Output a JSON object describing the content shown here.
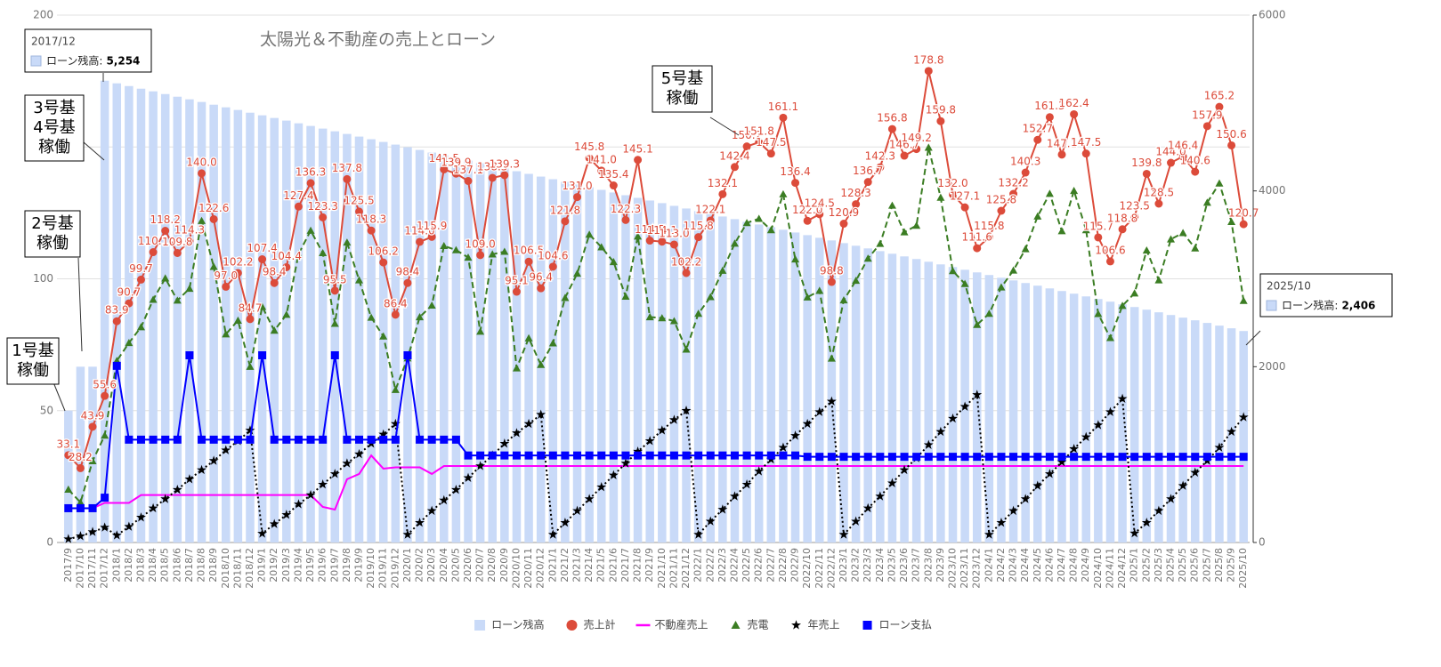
{
  "chart_data": {
    "type": "combo",
    "title": "太陽光＆不動産の売上とローン",
    "categories": [
      "2017/9",
      "2017/10",
      "2017/11",
      "2017/12",
      "2018/1",
      "2018/2",
      "2018/3",
      "2018/4",
      "2018/5",
      "2018/6",
      "2018/7",
      "2018/8",
      "2018/9",
      "2018/10",
      "2018/11",
      "2018/12",
      "2019/1",
      "2019/2",
      "2019/3",
      "2019/4",
      "2019/5",
      "2019/6",
      "2019/7",
      "2019/8",
      "2019/9",
      "2019/10",
      "2019/11",
      "2019/12",
      "2020/1",
      "2020/2",
      "2020/3",
      "2020/4",
      "2020/5",
      "2020/6",
      "2020/7",
      "2020/8",
      "2020/9",
      "2020/10",
      "2020/11",
      "2020/12",
      "2021/1",
      "2021/2",
      "2021/3",
      "2021/4",
      "2021/5",
      "2021/6",
      "2021/7",
      "2021/8",
      "2021/9",
      "2021/10",
      "2021/11",
      "2021/12",
      "2022/1",
      "2022/2",
      "2022/3",
      "2022/4",
      "2022/5",
      "2022/6",
      "2022/7",
      "2022/8",
      "2022/9",
      "2022/10",
      "2022/11",
      "2022/12",
      "2023/1",
      "2023/2",
      "2023/3",
      "2023/4",
      "2023/5",
      "2023/6",
      "2023/7",
      "2023/8",
      "2023/9",
      "2023/10",
      "2023/11",
      "2023/12",
      "2024/1",
      "2024/2",
      "2024/3",
      "2024/4",
      "2024/5",
      "2024/6",
      "2024/7",
      "2024/8",
      "2024/9",
      "2024/10",
      "2024/11",
      "2024/12",
      "2025/1",
      "2025/2",
      "2025/3",
      "2025/4",
      "2025/5",
      "2025/6",
      "2025/7",
      "2025/8",
      "2025/9",
      "2025/10"
    ],
    "ylim": [
      0,
      200
    ],
    "yticks": [
      0,
      50,
      100,
      150,
      200
    ],
    "y2lim": [
      0,
      6000
    ],
    "y2ticks": [
      0,
      2000,
      4000,
      6000
    ],
    "grid": true,
    "legend": "bottom",
    "series": [
      {
        "name": "ローン残高",
        "type": "bar",
        "axis": "y2",
        "color": "#c9daf8",
        "values": [
          1500,
          2000,
          2000,
          5254,
          5224,
          5193,
          5163,
          5133,
          5102,
          5072,
          5042,
          5012,
          4981,
          4951,
          4921,
          4890,
          4860,
          4830,
          4800,
          4769,
          4739,
          4709,
          4678,
          4648,
          4618,
          4588,
          4557,
          4527,
          4497,
          4466,
          4436,
          4406,
          4376,
          4345,
          4315,
          4285,
          4254,
          4224,
          4194,
          4163,
          4133,
          4103,
          4073,
          4042,
          4012,
          3982,
          3951,
          3921,
          3891,
          3861,
          3830,
          3800,
          3770,
          3739,
          3709,
          3679,
          3649,
          3618,
          3588,
          3558,
          3527,
          3497,
          3467,
          3437,
          3406,
          3376,
          3346,
          3315,
          3285,
          3255,
          3225,
          3194,
          3164,
          3134,
          3103,
          3073,
          3043,
          3012,
          2982,
          2952,
          2922,
          2891,
          2861,
          2831,
          2800,
          2770,
          2740,
          2710,
          2679,
          2649,
          2619,
          2588,
          2558,
          2528,
          2498,
          2467,
          2437,
          2406
        ]
      },
      {
        "name": "売上計",
        "type": "line",
        "axis": "y",
        "color": "#dc4b3a",
        "marker": "circle",
        "dash": "solid",
        "values": [
          33.1,
          28.2,
          43.9,
          55.6,
          83.9,
          90.7,
          99.7,
          110.1,
          118.2,
          109.8,
          114.3,
          140.0,
          122.6,
          97.0,
          102.2,
          84.7,
          107.4,
          98.4,
          104.4,
          127.4,
          136.3,
          123.3,
          95.5,
          137.8,
          125.5,
          118.3,
          106.2,
          86.4,
          98.4,
          114.0,
          115.9,
          141.5,
          139.9,
          137.1,
          109.0,
          138.3,
          139.3,
          95.1,
          106.5,
          96.4,
          104.6,
          121.8,
          131.0,
          145.8,
          141.0,
          135.4,
          122.3,
          145.1,
          114.5,
          114.1,
          113.0,
          102.2,
          115.8,
          122.1,
          132.1,
          142.4,
          150.2,
          151.8,
          147.5,
          161.1,
          136.4,
          122.0,
          124.5,
          98.8,
          120.9,
          128.3,
          136.7,
          142.3,
          156.8,
          146.7,
          149.2,
          178.8,
          159.8,
          132.0,
          127.1,
          111.6,
          115.8,
          125.8,
          132.2,
          140.3,
          152.7,
          161.3,
          147.1,
          162.4,
          147.5,
          115.7,
          106.6,
          118.8,
          123.5,
          139.8,
          128.5,
          144.0,
          146.4,
          140.6,
          157.9,
          165.2,
          150.6,
          120.7
        ],
        "value_labels": [
          "33.1",
          "28.2",
          "43.9",
          "55.6",
          "83.9",
          "90.7",
          "99.7",
          "110.1",
          "118.2",
          "109.8",
          "114.3",
          "140.0",
          "122.6",
          "97.0",
          "102.2",
          "84.7",
          "107.4",
          "98.4",
          "104.4",
          "127.4",
          "136.3",
          "123.3",
          "95.5",
          "137.8",
          "125.5",
          "118.3",
          "106.2",
          "86.4",
          "98.4",
          "114.0",
          "115.9",
          "141.5",
          "139.9",
          "137.1",
          "109.0",
          "138.3",
          "139.3",
          "95.1",
          "106.5",
          "96.4",
          "104.6",
          "121.8",
          "131.0",
          "145.8",
          "141.0",
          "135.4",
          "122.3",
          "145.1",
          "114.5",
          "114.1",
          "113.0",
          "102.2",
          "115.8",
          "122.1",
          "132.1",
          "142.4",
          "150.2",
          "151.8",
          "147.5",
          "161.1",
          "136.4",
          "122.0",
          "124.5",
          "98.8",
          "120.9",
          "128.3",
          "136.7",
          "142.3",
          "156.8",
          "146.7",
          "149.2",
          "178.8",
          "159.8",
          "132.0",
          "127.1",
          "111.6",
          "115.8",
          "125.8",
          "132.2",
          "140.3",
          "152.7",
          "161.3",
          "147.1",
          "162.4",
          "147.5",
          "115.7",
          "106.6",
          "118.8",
          "123.5",
          "139.8",
          "128.5",
          "144.0",
          "146.4",
          "140.6",
          "157.9",
          "165.2",
          "150.6",
          "120.7"
        ]
      },
      {
        "name": "不動産売上",
        "type": "line",
        "axis": "y",
        "color": "#ff00ff",
        "marker": "none",
        "dash": "solid",
        "values": [
          13,
          13,
          13,
          15,
          15,
          15,
          18,
          18,
          18,
          18,
          18,
          18,
          18,
          18,
          18,
          18,
          18,
          18,
          18,
          18,
          18,
          13.5,
          12.5,
          24,
          26,
          33,
          28,
          28.5,
          28.5,
          28.5,
          26,
          29,
          29,
          29,
          29,
          29,
          29,
          29,
          29,
          29,
          29,
          29,
          29,
          29,
          29,
          29,
          29,
          29,
          29,
          29,
          29,
          29,
          29,
          29,
          29,
          29,
          29,
          29,
          29,
          29,
          29,
          29,
          29,
          29,
          29,
          29,
          29,
          29,
          29,
          29,
          29,
          29,
          29,
          29,
          29,
          29,
          29,
          29,
          29,
          29,
          29,
          29,
          29,
          29,
          29,
          29,
          29,
          29,
          29,
          29,
          29,
          29,
          29,
          29,
          29,
          29,
          29,
          29
        ]
      },
      {
        "name": "売電",
        "type": "line",
        "axis": "y",
        "color": "#3b7d23",
        "marker": "triangle",
        "dash": "dashed",
        "values": [
          20.1,
          15.2,
          30.9,
          40.6,
          68.9,
          75.7,
          81.7,
          92.1,
          100.2,
          91.8,
          96.3,
          122,
          104.6,
          79,
          84.2,
          66.7,
          89.4,
          80.4,
          86.4,
          109.4,
          118.3,
          109.8,
          83,
          113.8,
          99.5,
          85.3,
          78.2,
          57.9,
          69.9,
          85.5,
          89.9,
          112.5,
          110.9,
          108.1,
          80,
          109.3,
          110.3,
          66.1,
          77.5,
          67.4,
          75.6,
          92.8,
          102,
          116.8,
          112,
          106.4,
          93.3,
          116.1,
          85.5,
          85.1,
          84,
          73.2,
          86.8,
          93.1,
          103.1,
          113.4,
          121.2,
          122.8,
          118.5,
          132.1,
          107.4,
          93,
          95.5,
          69.8,
          91.9,
          99.3,
          107.7,
          113.3,
          127.8,
          117.7,
          120.2,
          149.8,
          130.8,
          103,
          98.1,
          82.6,
          86.8,
          96.8,
          103.2,
          111.3,
          123.7,
          132.3,
          118.1,
          133.4,
          118.5,
          86.7,
          77.6,
          89.8,
          94.5,
          110.8,
          99.5,
          115,
          117.4,
          111.6,
          128.9,
          136.2,
          121.6,
          91.7
        ]
      },
      {
        "name": "年売上",
        "type": "line",
        "axis": "y",
        "color": "#000000",
        "marker": "star",
        "dash": "dotted",
        "values": [
          1.3,
          2.4,
          4,
          5.7,
          2.7,
          6,
          9.5,
          13,
          16.5,
          20,
          24,
          27.5,
          31,
          35,
          38.5,
          42.5,
          3.4,
          7,
          10.5,
          14.5,
          18,
          22,
          26,
          30,
          33.5,
          37.5,
          41,
          45,
          3,
          7.5,
          12,
          16,
          20,
          24.5,
          29,
          33,
          37.5,
          41.5,
          45,
          48.5,
          3,
          7.5,
          12,
          16.5,
          21,
          25.5,
          30,
          34.5,
          38.5,
          42.5,
          46.5,
          50,
          3,
          8,
          12.5,
          17.5,
          22,
          27,
          31.5,
          36,
          40.5,
          45,
          49.5,
          53.5,
          3,
          8,
          13,
          17.5,
          22.5,
          27.5,
          32,
          37,
          42,
          47,
          51.5,
          56,
          3,
          7.5,
          12,
          16.5,
          21.5,
          26,
          30.5,
          35.5,
          40,
          44.5,
          49.5,
          54.5,
          3.5,
          7.5,
          12,
          16.5,
          21.5,
          26.5,
          31,
          36,
          42,
          47.5
        ]
      },
      {
        "name": "ローン支払",
        "type": "line",
        "axis": "y",
        "color": "#0000ff",
        "marker": "square",
        "dash": "solid",
        "values": [
          13,
          13,
          13,
          17,
          67,
          39,
          39,
          39,
          39,
          39,
          71,
          39,
          39,
          39,
          39,
          39,
          71,
          39,
          39,
          39,
          39,
          39,
          71,
          39,
          39,
          39,
          39,
          39,
          71,
          39,
          39,
          39,
          39,
          33,
          33,
          33,
          33,
          33,
          33,
          33,
          33,
          33,
          33,
          33,
          33,
          33,
          33,
          33,
          33,
          33,
          33,
          33,
          33,
          33,
          33,
          33,
          33,
          33,
          33,
          33,
          33,
          32.5,
          32.5,
          32.5,
          32.5,
          32.5,
          32.5,
          32.5,
          32.5,
          32.5,
          32.5,
          32.5,
          32.5,
          32.5,
          32.5,
          32.5,
          32.5,
          32.5,
          32.5,
          32.5,
          32.5,
          32.5,
          32.5,
          32.5,
          32.5,
          32.5,
          32.5,
          32.5,
          32.5,
          32.5,
          32.5,
          32.5,
          32.5,
          32.5,
          32.5,
          32.5,
          32.5,
          32.5
        ]
      }
    ],
    "annotations": [
      {
        "lines": [
          "1号基",
          "稼働"
        ]
      },
      {
        "lines": [
          "2号基",
          "稼働"
        ]
      },
      {
        "lines": [
          "3号基",
          "4号基",
          "稼働"
        ]
      },
      {
        "lines": [
          "5号基",
          "稼働"
        ]
      }
    ],
    "tooltips": [
      {
        "title": "2017/12",
        "label": "ローン残高:",
        "value": "5,254"
      },
      {
        "title": "2025/10",
        "label": "ローン残高:",
        "value": "2,406"
      }
    ]
  }
}
